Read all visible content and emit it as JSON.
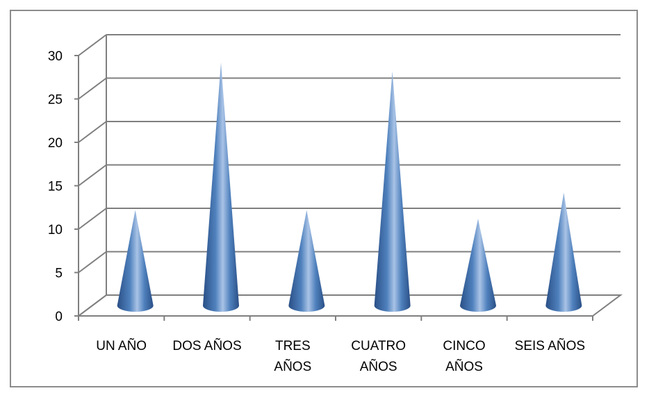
{
  "chart_data": {
    "type": "bar",
    "bar_shape": "cone",
    "categories": [
      [
        "UN AÑO"
      ],
      [
        "DOS AÑOS"
      ],
      [
        "TRES",
        "AÑOS"
      ],
      [
        "CUATRO",
        "AÑOS"
      ],
      [
        "CINCO",
        "AÑOS"
      ],
      [
        "SEIS AÑOS"
      ]
    ],
    "values": [
      11,
      28,
      11,
      27,
      10,
      13
    ],
    "ylim": [
      0,
      30
    ],
    "yticks": [
      0,
      5,
      10,
      15,
      20,
      25,
      30
    ],
    "grid": true,
    "colors": {
      "cone_dark": "#2a4f86",
      "cone_mid": "#4f81bd",
      "cone_light": "#a9c3e6",
      "gridline": "#7f7f7f",
      "frame": "#8c8c8c"
    }
  }
}
